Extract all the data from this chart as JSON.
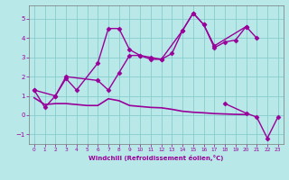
{
  "xlabel": "Windchill (Refroidissement éolien,°C)",
  "bg_color": "#b8e8e8",
  "line_color": "#990099",
  "grid_color": "#88cccc",
  "xlim": [
    -0.5,
    23.5
  ],
  "ylim": [
    -1.5,
    5.7
  ],
  "xticks": [
    0,
    1,
    2,
    3,
    4,
    5,
    6,
    7,
    8,
    9,
    10,
    11,
    12,
    13,
    14,
    15,
    16,
    17,
    18,
    19,
    20,
    21,
    22,
    23
  ],
  "yticks": [
    -1,
    0,
    1,
    2,
    3,
    4,
    5
  ],
  "series": [
    {
      "x": [
        0,
        1,
        2,
        3,
        4,
        6,
        7,
        8,
        9,
        10,
        11,
        12,
        14,
        15,
        16,
        17,
        20
      ],
      "y": [
        1.3,
        0.4,
        1.0,
        1.9,
        1.3,
        2.7,
        4.5,
        4.5,
        3.4,
        3.1,
        2.9,
        2.9,
        4.4,
        5.3,
        4.7,
        3.6,
        4.6
      ],
      "marker": "D",
      "markersize": 2.5,
      "linewidth": 1.0
    },
    {
      "x": [
        0,
        2,
        3,
        6,
        7,
        8,
        9,
        10,
        11,
        12,
        13,
        14,
        15,
        16,
        17,
        18,
        19,
        20,
        21
      ],
      "y": [
        1.3,
        1.0,
        2.0,
        1.8,
        1.3,
        2.2,
        3.1,
        3.1,
        3.0,
        2.9,
        3.2,
        4.4,
        5.3,
        4.7,
        3.5,
        3.8,
        3.9,
        4.6,
        4.0
      ],
      "marker": "D",
      "markersize": 2.5,
      "linewidth": 1.0
    },
    {
      "x": [
        0,
        1,
        2,
        3,
        4,
        5,
        6,
        7,
        8,
        9,
        10,
        11,
        12,
        13,
        14,
        15,
        16,
        17,
        18,
        19,
        20
      ],
      "y": [
        0.9,
        0.55,
        0.6,
        0.6,
        0.55,
        0.5,
        0.5,
        0.85,
        0.75,
        0.5,
        0.45,
        0.4,
        0.38,
        0.3,
        0.2,
        0.15,
        0.12,
        0.08,
        0.06,
        0.04,
        0.03
      ],
      "marker": null,
      "markersize": 0,
      "linewidth": 1.2
    },
    {
      "x": [
        18,
        20,
        21,
        22,
        23
      ],
      "y": [
        0.6,
        0.1,
        -0.1,
        -1.2,
        -0.1
      ],
      "marker": "D",
      "markersize": 2.5,
      "linewidth": 1.0
    }
  ]
}
